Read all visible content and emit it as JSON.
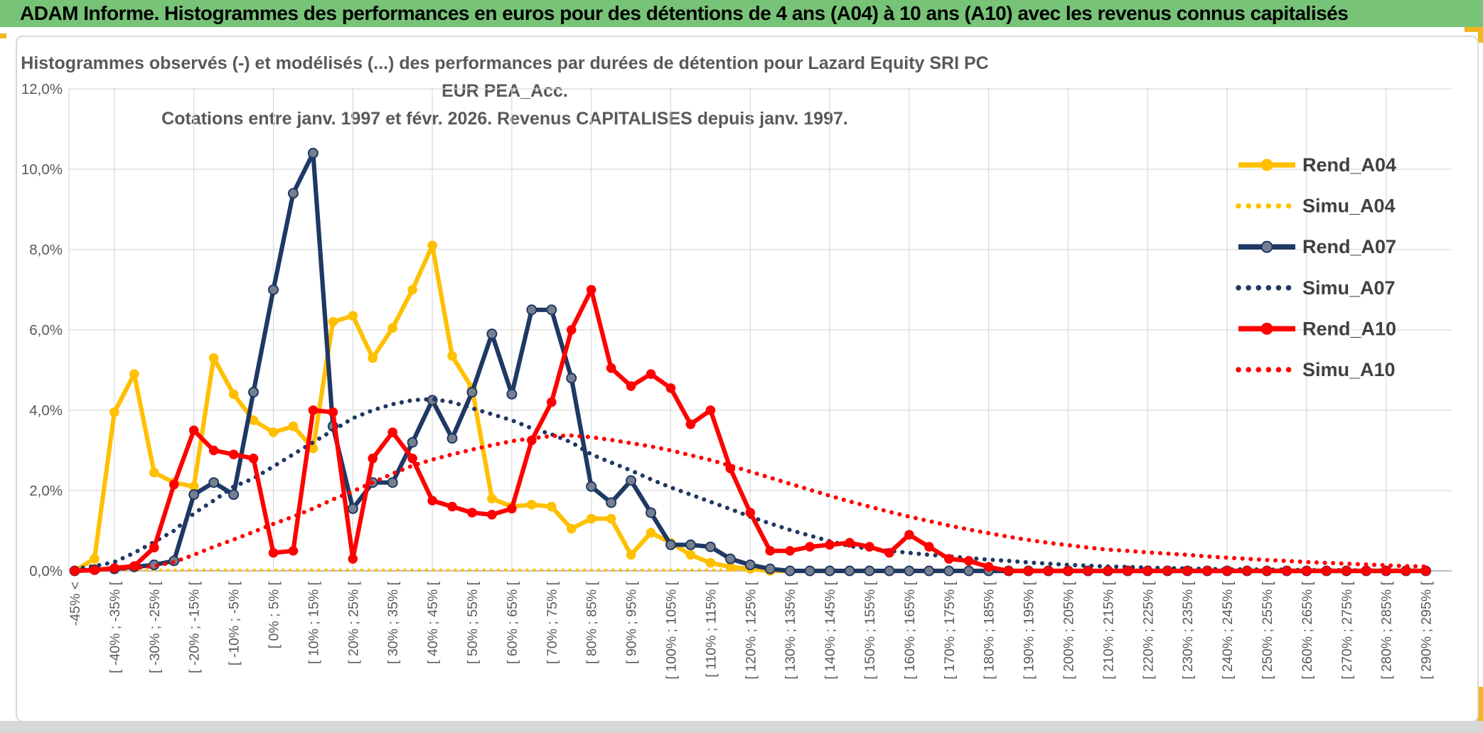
{
  "window": {
    "title_bar": "ADAM Informe. Histogrammes des performances en euros pour des détentions de 4 ans (A04) à 10 ans (A10) avec les revenus connus capitalisés",
    "accent_color": "#f2b51d",
    "title_bar_color": "#77c377"
  },
  "chart_data": {
    "type": "line",
    "title_line1": "Histogrammes observés (-) et modélisés (...) des performances par durées de détention pour Lazard Equity SRI PC EUR PEA_Acc.",
    "title_line2": "Cotations entre janv. 1997 et févr. 2026. Revenus CAPITALISES depuis janv. 1997.",
    "ylim": [
      0,
      12
    ],
    "y_tick_labels": [
      "0,0%",
      "2,0%",
      "4,0%",
      "6,0%",
      "8,0%",
      "10,0%",
      "12,0%"
    ],
    "y_tick_values": [
      0,
      2,
      4,
      6,
      8,
      10,
      12
    ],
    "grid": true,
    "n_buckets": 69,
    "label_every": 2,
    "x_labels": [
      "-45% <",
      "[ -40% ; -35% [",
      "[ -30% ; -25% [",
      "[ -20% ; -15% [",
      "[ -10% ; -5% [",
      "[ 0% ; 5% [",
      "[ 10% ; 15% [",
      "[ 20% ; 25% [",
      "[ 30% ; 35% [",
      "[ 40% ; 45% [",
      "[ 50% ; 55% [",
      "[ 60% ; 65% [",
      "[ 70% ; 75% [",
      "[ 80% ; 85% [",
      "[ 90% ; 95% [",
      "[ 100% ; 105% [",
      "[ 110% ; 115% [",
      "[ 120% ; 125% [",
      "[ 130% ; 135% [",
      "[ 140% ; 145% [",
      "[ 150% ; 155% [",
      "[ 160% ; 165% [",
      "[ 170% ; 175% [",
      "[ 180% ; 185% [",
      "[ 190% ; 195% [",
      "[ 200% ; 205% [",
      "[ 210% ; 215% [",
      "[ 220% ; 225% [",
      "[ 230% ; 235% [",
      "[ 240% ; 245% [",
      "[ 250% ; 255% [",
      "[ 260% ; 265% [",
      "[ 270% ; 275% [",
      "[ 280% ; 285% [",
      "[ 290% ; 295% ["
    ],
    "legend_position": "right",
    "series": [
      {
        "name": "Rend_A04",
        "color": "#FFC000",
        "style": "solid",
        "marker": "dot",
        "marker_fill": "#FFC000",
        "marker_stroke": "#FFC000",
        "values": [
          0,
          0.3,
          3.95,
          4.9,
          2.45,
          2.2,
          2.1,
          5.3,
          4.4,
          3.75,
          3.45,
          3.6,
          3.05,
          6.2,
          6.35,
          5.3,
          6.05,
          7.0,
          8.1,
          5.35,
          4.55,
          1.8,
          1.6,
          1.65,
          1.6,
          1.05,
          1.3,
          1.3,
          0.4,
          0.95,
          0.7,
          0.4,
          0.2,
          0.1,
          0.05,
          0,
          0,
          0,
          0,
          0,
          0,
          0,
          0,
          0,
          0,
          0,
          0,
          0,
          0,
          0,
          0,
          0,
          0,
          0,
          0,
          0,
          0,
          0,
          0,
          0,
          0,
          0,
          0,
          0,
          0,
          0,
          0,
          0,
          0
        ]
      },
      {
        "name": "Simu_A04",
        "color": "#FFC000",
        "style": "dotted",
        "marker": "none",
        "values": [
          0.02,
          0.02,
          0.02,
          0.02,
          0.02,
          0.02,
          0.02,
          0.02,
          0.02,
          0.02,
          0.02,
          0.02,
          0.02,
          0.02,
          0.02,
          0.02,
          0.02,
          0.02,
          0.02,
          0.02,
          0.02,
          0.02,
          0.02,
          0.02,
          0.02,
          0.02,
          0.02,
          0.02,
          0.02,
          0.02,
          0.02,
          0.02,
          0.02,
          0.02,
          0.02,
          0.02,
          0.02,
          0.02,
          0.02,
          0.02,
          0.02,
          0.02,
          0.02,
          0.02,
          0.02,
          0.02,
          0.02,
          0.02,
          0.02,
          0.02,
          0.02,
          0.02,
          0.02,
          0.02,
          0.02,
          0.02,
          0.02,
          0.02,
          0.02,
          0.02,
          0.02,
          0.02,
          0.02,
          0.02,
          0.02,
          0.02,
          0.02,
          0.02,
          0.02
        ]
      },
      {
        "name": "Rend_A07",
        "color": "#1F3864",
        "style": "solid",
        "marker": "dot",
        "marker_fill": "#75808E",
        "marker_stroke": "#1F3864",
        "values": [
          0,
          0.03,
          0.05,
          0.1,
          0.15,
          0.25,
          1.9,
          2.2,
          1.9,
          4.45,
          7.0,
          9.4,
          10.4,
          3.6,
          1.55,
          2.2,
          2.2,
          3.2,
          4.25,
          3.3,
          4.45,
          5.9,
          4.4,
          6.5,
          6.5,
          4.8,
          2.1,
          1.7,
          2.25,
          1.45,
          0.65,
          0.65,
          0.6,
          0.3,
          0.15,
          0.05,
          0,
          0,
          0,
          0,
          0,
          0,
          0,
          0,
          0,
          0,
          0,
          0,
          0,
          0,
          0,
          0,
          0,
          0,
          0,
          0,
          0,
          0,
          0,
          0,
          0,
          0,
          0,
          0,
          0,
          0,
          0,
          0,
          0
        ]
      },
      {
        "name": "Simu_A07",
        "color": "#1F3864",
        "style": "dotted",
        "marker": "none",
        "values": [
          0.05,
          0.12,
          0.22,
          0.45,
          0.72,
          1.0,
          1.43,
          1.75,
          2.1,
          2.3,
          2.6,
          2.9,
          3.2,
          3.5,
          3.8,
          4.0,
          4.15,
          4.25,
          4.28,
          4.2,
          4.05,
          3.9,
          3.75,
          3.55,
          3.4,
          3.2,
          2.9,
          2.7,
          2.5,
          2.28,
          2.08,
          1.9,
          1.72,
          1.54,
          1.35,
          1.18,
          1.02,
          0.88,
          0.74,
          0.62,
          0.55,
          0.5,
          0.45,
          0.4,
          0.36,
          0.32,
          0.28,
          0.25,
          0.21,
          0.18,
          0.15,
          0.13,
          0.11,
          0.1,
          0.08,
          0.07,
          0.06,
          0.05,
          0.04,
          0.04,
          0.03,
          0.03,
          0.02,
          0.02,
          0.02,
          0.01,
          0.01,
          0.01,
          0.01
        ]
      },
      {
        "name": "Rend_A10",
        "color": "#FF0000",
        "style": "solid",
        "marker": "dot",
        "marker_fill": "#FF0000",
        "marker_stroke": "#FF0000",
        "values": [
          0,
          0.02,
          0.07,
          0.12,
          0.58,
          2.15,
          3.5,
          3.0,
          2.9,
          2.8,
          0.45,
          0.5,
          4.0,
          3.95,
          0.3,
          2.8,
          3.45,
          2.8,
          1.75,
          1.6,
          1.45,
          1.4,
          1.55,
          3.25,
          4.2,
          6.0,
          7.0,
          5.05,
          4.6,
          4.9,
          4.55,
          3.65,
          4.0,
          2.55,
          1.45,
          0.5,
          0.5,
          0.6,
          0.65,
          0.7,
          0.6,
          0.45,
          0.9,
          0.6,
          0.3,
          0.25,
          0.1,
          0,
          0,
          0,
          0,
          0,
          0,
          0,
          0,
          0,
          0,
          0,
          0,
          0,
          0,
          0,
          0,
          0,
          0,
          0,
          0,
          0,
          0
        ]
      },
      {
        "name": "Simu_A10",
        "color": "#FF0000",
        "style": "dotted",
        "marker": "none",
        "values": [
          0.01,
          0.02,
          0.04,
          0.07,
          0.12,
          0.22,
          0.4,
          0.6,
          0.78,
          0.97,
          1.17,
          1.35,
          1.55,
          1.78,
          1.98,
          2.2,
          2.42,
          2.62,
          2.77,
          2.9,
          3.02,
          3.13,
          3.23,
          3.3,
          3.36,
          3.37,
          3.33,
          3.26,
          3.18,
          3.1,
          3.0,
          2.88,
          2.76,
          2.62,
          2.47,
          2.32,
          2.17,
          2.02,
          1.87,
          1.73,
          1.6,
          1.47,
          1.35,
          1.24,
          1.13,
          1.03,
          0.94,
          0.85,
          0.77,
          0.7,
          0.64,
          0.58,
          0.53,
          0.5,
          0.46,
          0.43,
          0.4,
          0.36,
          0.33,
          0.3,
          0.27,
          0.25,
          0.22,
          0.2,
          0.18,
          0.16,
          0.14,
          0.12,
          0.11
        ]
      }
    ],
    "colors": {
      "grid": "#d9d9d9",
      "axis": "#a6a6a6",
      "text": "#595959",
      "legend_text": "#404040"
    }
  }
}
